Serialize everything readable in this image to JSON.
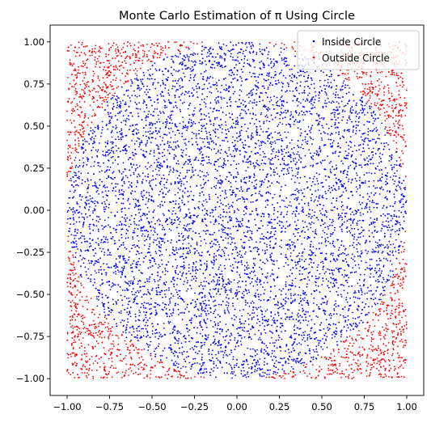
{
  "chart_data": {
    "type": "scatter",
    "title": "Monte Carlo Estimation of π Using Circle",
    "xlabel": "",
    "ylabel": "",
    "xlim": [
      -1.1,
      1.1
    ],
    "ylim": [
      -1.1,
      1.1
    ],
    "xticks": [
      "−1.00",
      "−0.75",
      "−0.50",
      "−0.25",
      "0.00",
      "0.25",
      "0.50",
      "0.75",
      "1.00"
    ],
    "yticks": [
      "1.00",
      "0.75",
      "0.50",
      "0.25",
      "0.00",
      "−0.25",
      "−0.50",
      "−0.75",
      "−1.00"
    ],
    "grid": false,
    "legend_position": "top-right",
    "sampling": {
      "distribution": "uniform",
      "x_range": [
        -1,
        1
      ],
      "y_range": [
        -1,
        1
      ],
      "circle_radius": 1
    },
    "series": [
      {
        "name": "Inside Circle",
        "color": "#0000ff",
        "rule": "x^2 + y^2 <= 1"
      },
      {
        "name": "Outside Circle",
        "color": "#ff0000",
        "rule": "x^2 + y^2 > 1"
      }
    ]
  }
}
